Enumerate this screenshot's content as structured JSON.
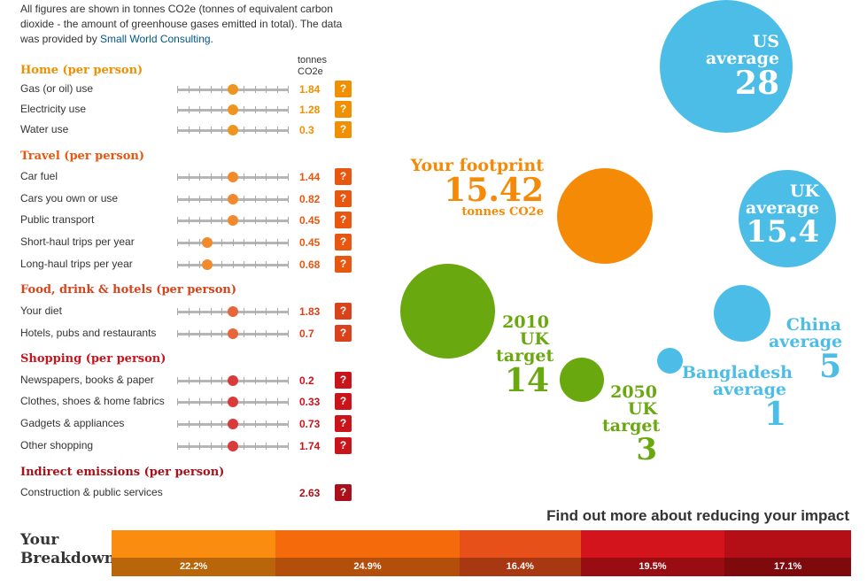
{
  "intro": {
    "text": "All figures are shown in tonnes CO2e (tonnes of equivalent carbon dioxide - the amount of greenhouse gases emitted in total). The data was provided by ",
    "link": "Small World Consulting",
    "end": "."
  },
  "units_header": "tonnes CO2e",
  "help_label": "?",
  "sections": [
    {
      "title": "Home (per person)",
      "color": "#f08f00",
      "knob_color": "#f09420",
      "rows": [
        {
          "label": "Gas (or oil) use",
          "value": "1.84",
          "level": 0.5
        },
        {
          "label": "Electricity use",
          "value": "1.28",
          "level": 0.5
        },
        {
          "label": "Water use",
          "value": "0.3",
          "level": 0.5
        }
      ]
    },
    {
      "title": "Travel (per person)",
      "color": "#e8570f",
      "knob_color": "#f08a2c",
      "rows": [
        {
          "label": "Car fuel",
          "value": "1.44",
          "level": 0.5
        },
        {
          "label": "Cars you own or use",
          "value": "0.82",
          "level": 0.5
        },
        {
          "label": "Public transport",
          "value": "0.45",
          "level": 0.5
        },
        {
          "label": "Short-haul trips per year",
          "value": "0.45",
          "level": 0.27
        },
        {
          "label": "Long-haul trips per year",
          "value": "0.68",
          "level": 0.27
        }
      ]
    },
    {
      "title": "Food, drink & hotels (per person)",
      "color": "#d9431b",
      "knob_color": "#e8643a",
      "rows": [
        {
          "label": "Your diet",
          "value": "1.83",
          "level": 0.5
        },
        {
          "label": "Hotels, pubs and restaurants",
          "value": "0.7",
          "level": 0.5
        }
      ]
    },
    {
      "title": "Shopping (per person)",
      "color": "#c9141c",
      "knob_color": "#d93a3a",
      "rows": [
        {
          "label": "Newspapers, books & paper",
          "value": "0.2",
          "level": 0.5
        },
        {
          "label": "Clothes, shoes & home fabrics",
          "value": "0.33",
          "level": 0.5
        },
        {
          "label": "Gadgets & appliances",
          "value": "0.73",
          "level": 0.5
        },
        {
          "label": "Other shopping",
          "value": "1.74",
          "level": 0.5
        }
      ]
    },
    {
      "title": "Indirect emissions (per person)",
      "color": "#a8101a",
      "knob_color": "#a8101a",
      "rows": [
        {
          "label": "Construction & public services",
          "value": "2.63",
          "level": null
        }
      ]
    }
  ],
  "bubbles": {
    "us": {
      "lines": [
        "US",
        "average"
      ],
      "value": "28",
      "color": "#4bbde6"
    },
    "uk": {
      "lines": [
        "UK",
        "average"
      ],
      "value": "15.4",
      "color": "#4bbde6"
    },
    "yours": {
      "line1": "Your footprint",
      "value": "15.42",
      "unit": "tonnes CO2e",
      "color": "#f58a07"
    },
    "uk2010": {
      "lines": [
        "2010",
        "UK",
        "target"
      ],
      "value": "14",
      "color": "#6aa80f"
    },
    "uk2050": {
      "lines": [
        "2050",
        "UK",
        "target"
      ],
      "value": "3",
      "color": "#6aa80f"
    },
    "china": {
      "lines": [
        "China",
        "average"
      ],
      "value": "5",
      "color": "#4bbde6"
    },
    "bangladesh": {
      "lines": [
        "Bangladesh",
        "average"
      ],
      "value": "1",
      "color": "#4bbde6"
    }
  },
  "find_more": "Find out more about reducing your impact",
  "breakdown": {
    "title_line1": "Your",
    "title_line2": "Breakdown",
    "segments": [
      {
        "percent": "22.2%",
        "share": 0.222,
        "top": "#fa8c0f",
        "bottom": "#b9660b"
      },
      {
        "percent": "24.9%",
        "share": 0.249,
        "top": "#f56b0c",
        "bottom": "#b44e0b"
      },
      {
        "percent": "16.4%",
        "share": 0.164,
        "top": "#e8501a",
        "bottom": "#a83812"
      },
      {
        "percent": "19.5%",
        "share": 0.195,
        "top": "#d3141c",
        "bottom": "#990d12"
      },
      {
        "percent": "17.1%",
        "share": 0.171,
        "top": "#b40f16",
        "bottom": "#7e0a0e"
      }
    ]
  }
}
